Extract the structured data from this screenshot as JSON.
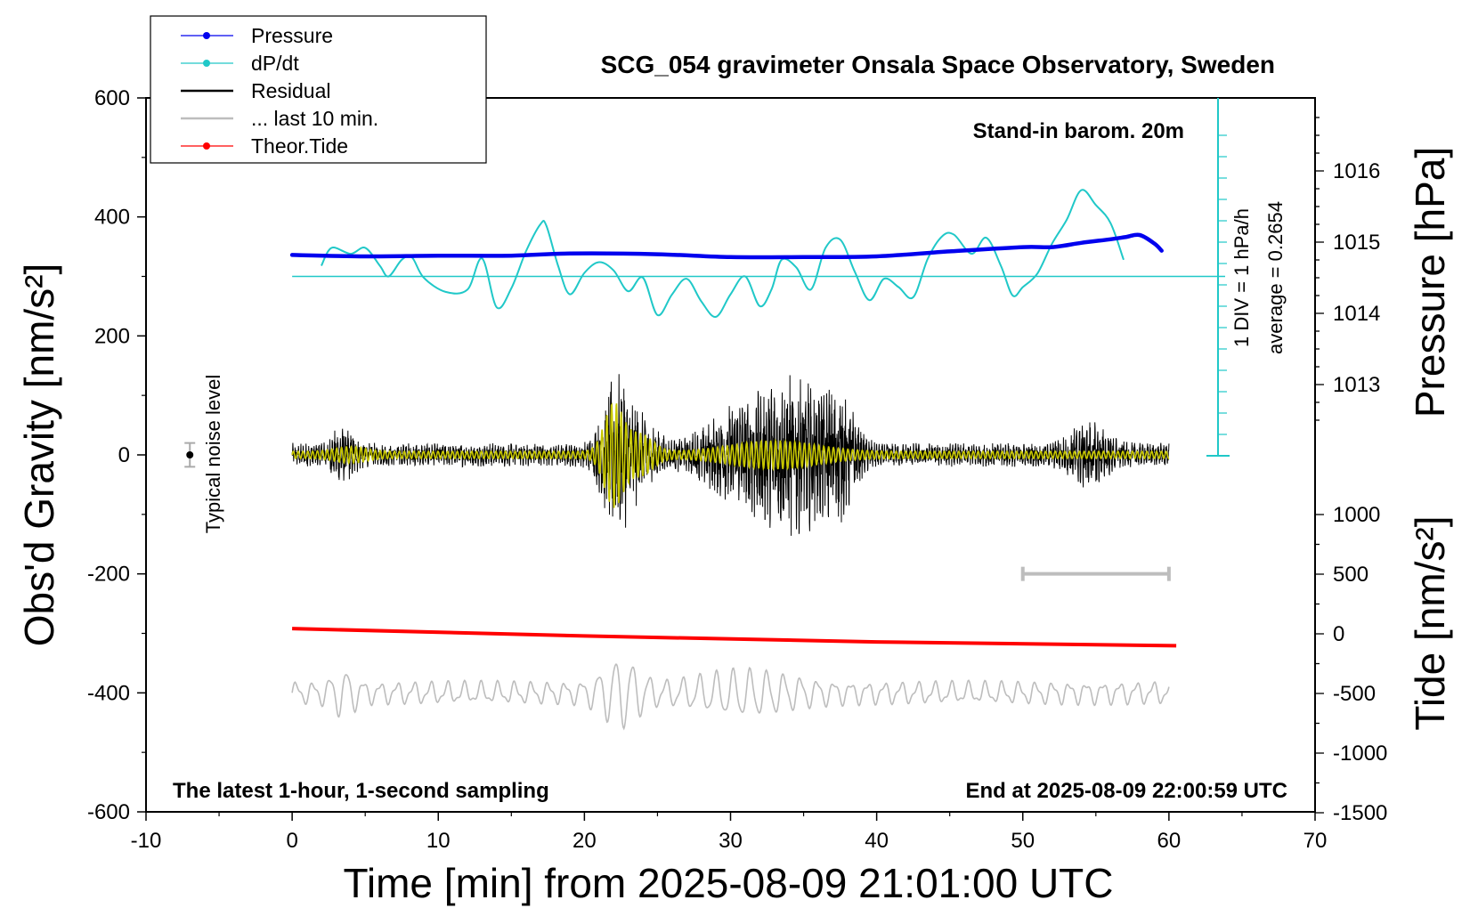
{
  "colors": {
    "pressure": "#0000ee",
    "dpdt": "#20c8c8",
    "residual": "#000000",
    "last10": "#bdbdbd",
    "tide": "#ff0000",
    "residual_filtered": "#c8c800"
  },
  "chart_data": {
    "type": "line",
    "title": "SCG_054 gravimeter Onsala Space Observatory, Sweden",
    "xlabel": "Time [min] from 2025-08-09 21:01:00 UTC",
    "ylabel": "Obs'd Gravity [nm/s²]",
    "y2label": "Pressure [hPa]",
    "y3label": "Tide [nm/s²]",
    "xlim": [
      -10,
      70
    ],
    "ylim": [
      -600,
      600
    ],
    "x_ticks": [
      -10,
      0,
      10,
      20,
      30,
      40,
      50,
      60,
      70
    ],
    "y_ticks": [
      -600,
      -400,
      -200,
      0,
      200,
      400,
      600
    ],
    "pressure_ticks": [
      1013,
      1014,
      1015,
      1016
    ],
    "tide_ticks": [
      -1500,
      -1000,
      -500,
      0,
      500,
      1000
    ],
    "legend": [
      {
        "key": "pressure",
        "label": "Pressure"
      },
      {
        "key": "dpdt",
        "label": "dP/dt"
      },
      {
        "key": "residual",
        "label": "Residual"
      },
      {
        "key": "last10",
        "label": "... last 10 min."
      },
      {
        "key": "tide",
        "label": "Theor.Tide"
      }
    ],
    "legend_position": "top-left",
    "annotations": {
      "barometer": "Stand-in barom. 20m",
      "div_scale": "1 DIV = 1 hPa/h",
      "average": "average = 0.2654",
      "noise_label": "Typical noise level",
      "bottom_left": "The latest 1-hour, 1-second sampling",
      "bottom_right": "End at 2025-08-09 22:00:59 UTC"
    },
    "pressure_hpa": {
      "x": [
        0,
        5,
        10,
        15,
        19,
        25,
        30,
        35,
        40,
        45,
        50,
        52,
        54,
        56,
        57,
        58,
        59,
        59.5
      ],
      "y": [
        1014.82,
        1014.8,
        1014.81,
        1014.81,
        1014.84,
        1014.83,
        1014.79,
        1014.79,
        1014.8,
        1014.87,
        1014.93,
        1014.93,
        1014.99,
        1015.04,
        1015.07,
        1015.1,
        1014.98,
        1014.88
      ]
    },
    "dpdt_baseline": 300,
    "dpdt": {
      "x": [
        2,
        2.7,
        4,
        5,
        6,
        6.6,
        7.5,
        8.2,
        9,
        10.5,
        12,
        13,
        14,
        15,
        16,
        17,
        17.4,
        18.2,
        19,
        20,
        21,
        22,
        23,
        24,
        25,
        26,
        27,
        28,
        29,
        30,
        31,
        32,
        32.8,
        33.5,
        34.5,
        35.5,
        36.5,
        37.5,
        38.5,
        39.5,
        40.5,
        41.5,
        42.5,
        43.5,
        44.5,
        45.3,
        46.5,
        47.5,
        48.5,
        49.3,
        50,
        51,
        52,
        53,
        54,
        55,
        56,
        56.9
      ],
      "y": [
        318,
        348,
        338,
        348,
        318,
        300,
        328,
        332,
        298,
        274,
        278,
        330,
        248,
        280,
        342,
        388,
        385,
        318,
        270,
        306,
        324,
        310,
        275,
        298,
        235,
        270,
        296,
        258,
        232,
        270,
        300,
        250,
        278,
        328,
        315,
        278,
        348,
        362,
        308,
        260,
        296,
        282,
        265,
        330,
        368,
        370,
        338,
        365,
        318,
        268,
        282,
        305,
        355,
        395,
        445,
        420,
        390,
        328
      ]
    },
    "tide_nms2": {
      "x": [
        0,
        20,
        40,
        60.5
      ],
      "y": [
        44,
        -18,
        -68,
        -100
      ]
    },
    "noise_level": {
      "x": -7,
      "y": 0,
      "half_range": 20
    },
    "window_bar": {
      "x": [
        50,
        60
      ],
      "y": -200
    }
  }
}
